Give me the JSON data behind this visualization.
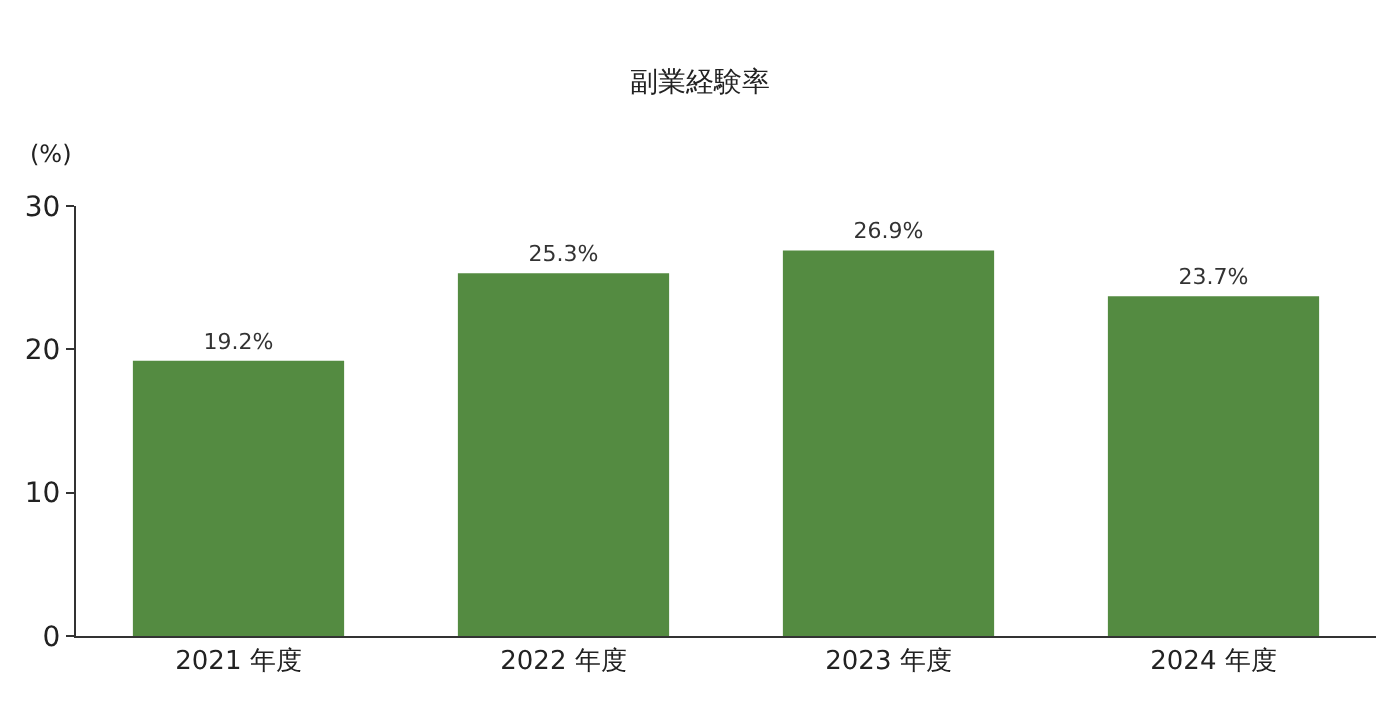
{
  "chart_data": {
    "type": "bar",
    "title": "副業経験率",
    "ylabel": "(%)",
    "categories": [
      "2021 年度",
      "2022 年度",
      "2023 年度",
      "2024 年度"
    ],
    "values": [
      19.2,
      25.3,
      26.9,
      23.7
    ],
    "value_labels": [
      "19.2%",
      "25.3%",
      "26.9%",
      "23.7%"
    ],
    "color": "#548b41",
    "ylim": [
      0,
      30
    ],
    "yticks": [
      0,
      10,
      20,
      30
    ],
    "legend": false
  }
}
